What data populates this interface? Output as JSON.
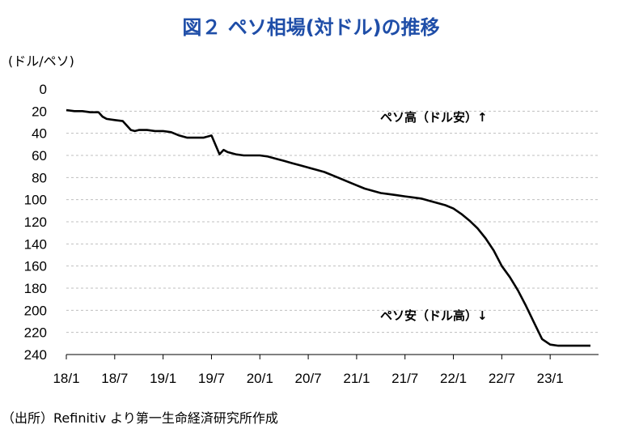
{
  "title": "図２ ペソ相場(対ドル)の推移",
  "unit_label": "(ドル/ペソ)",
  "source": "（出所）Refinitiv より第一生命経済研究所作成",
  "annotations": {
    "top": "ペソ高（ドル安）↑",
    "bottom": "ペソ安（ドル高）↓"
  },
  "colors": {
    "title": "#1f4ea8",
    "line": "#000000",
    "grid": "#bfbfbf"
  },
  "chart_data": {
    "type": "line",
    "title": "図２ ペソ相場(対ドル)の推移",
    "ylabel": "(ドル/ペソ)",
    "xlabel": "",
    "x_ticks": [
      "18/1",
      "18/7",
      "19/1",
      "19/7",
      "20/1",
      "20/7",
      "21/1",
      "21/7",
      "22/1",
      "22/7",
      "23/1"
    ],
    "y_ticks": [
      0,
      20,
      40,
      60,
      80,
      100,
      120,
      140,
      160,
      180,
      200,
      220,
      240
    ],
    "ylim": [
      0,
      240
    ],
    "y_inverted": true,
    "xlim": [
      "2018-01",
      "2023-07"
    ],
    "grid": "horizontal dashed",
    "series": [
      {
        "x": [
          "2018-01",
          "2018-02",
          "2018-03",
          "2018-04",
          "2018-05",
          "2018-05",
          "2018-06",
          "2018-07",
          "2018-08",
          "2018-09",
          "2018-09",
          "2018-10",
          "2018-11",
          "2018-12",
          "2019-01",
          "2019-02",
          "2019-03",
          "2019-04",
          "2019-05",
          "2019-06",
          "2019-07",
          "2019-08",
          "2019-08",
          "2019-09",
          "2019-10",
          "2019-11",
          "2019-12",
          "2020-01",
          "2020-02",
          "2020-03",
          "2020-04",
          "2020-05",
          "2020-06",
          "2020-07",
          "2020-08",
          "2020-09",
          "2020-10",
          "2020-11",
          "2020-12",
          "2021-01",
          "2021-02",
          "2021-03",
          "2021-04",
          "2021-05",
          "2021-06",
          "2021-07",
          "2021-08",
          "2021-09",
          "2021-10",
          "2021-11",
          "2021-12",
          "2022-01",
          "2022-02",
          "2022-03",
          "2022-04",
          "2022-05",
          "2022-06",
          "2022-07",
          "2022-08",
          "2022-09",
          "2022-10",
          "2022-11",
          "2022-12",
          "2023-01",
          "2023-02",
          "2023-03",
          "2023-04",
          "2023-05",
          "2023-06"
        ],
        "values": [
          19,
          20,
          20,
          21,
          21,
          25,
          27,
          28,
          29,
          37,
          38,
          37,
          37,
          38,
          38,
          39,
          42,
          44,
          44,
          44,
          42,
          59,
          55,
          57,
          59,
          60,
          60,
          60,
          61,
          63,
          65,
          67,
          69,
          71,
          73,
          75,
          78,
          81,
          84,
          87,
          90,
          92,
          94,
          95,
          96,
          97,
          98,
          99,
          101,
          103,
          105,
          108,
          113,
          119,
          126,
          135,
          146,
          160,
          170,
          182,
          196,
          211,
          226,
          231,
          232,
          232,
          232,
          232,
          232
        ]
      }
    ]
  }
}
